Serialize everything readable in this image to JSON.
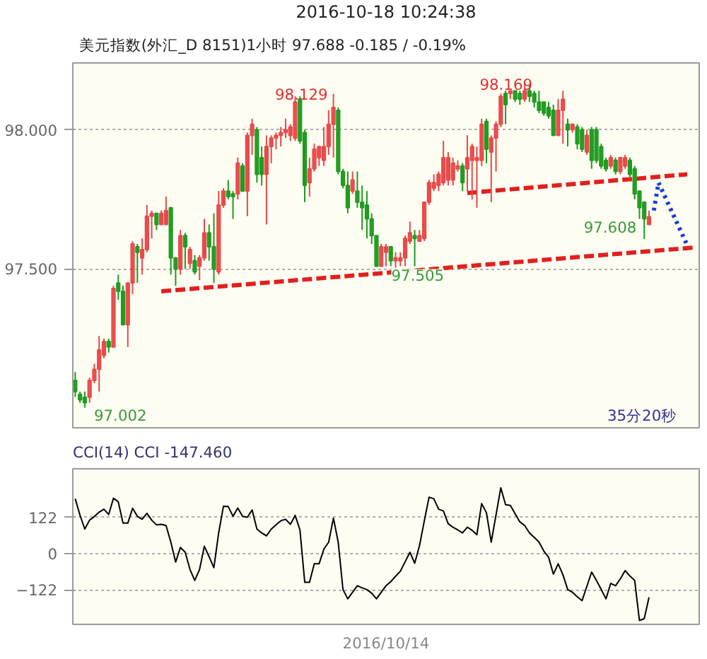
{
  "chart_data": [
    {
      "type": "candlestick",
      "title": "2016-10-18 10:24:38",
      "subtitle": "美元指数(外汇_D 8151)1小时   97.688   -0.185 / -0.19%",
      "annotations": [
        "35分20秒",
        "98.169",
        "97.608",
        "97.002",
        {
          "text": "98.129",
          "y": 98.129
        },
        {
          "text": "97.505",
          "y": 97.505
        }
      ],
      "categories": [
        null,
        null,
        null,
        null,
        null,
        null,
        null,
        null,
        null,
        null,
        null,
        null,
        null,
        null,
        null,
        null,
        null,
        null,
        null,
        null,
        null,
        null,
        null,
        null,
        null,
        null,
        null,
        null,
        null,
        null,
        null,
        null,
        null,
        null,
        null,
        null,
        null,
        null,
        null,
        null,
        null,
        null,
        null,
        null,
        null,
        null,
        null,
        null,
        null,
        null,
        null,
        null,
        null,
        null,
        null,
        null,
        null,
        null,
        null,
        null,
        null,
        null,
        null,
        null,
        null,
        null,
        null,
        null,
        null,
        null,
        null,
        null,
        null,
        null,
        null,
        null,
        null,
        null,
        null,
        null,
        null,
        null,
        null,
        null,
        null,
        null,
        null,
        null,
        null,
        null,
        null,
        null,
        null,
        null,
        null,
        null,
        null,
        null,
        null,
        null,
        null,
        null,
        null,
        null,
        null,
        null,
        null,
        null,
        null,
        null,
        null,
        null,
        null,
        null,
        null,
        null,
        null,
        null,
        null,
        null,
        null,
        null,
        null,
        null,
        null,
        null,
        null,
        null,
        null,
        null,
        null
      ],
      "ohlc": [
        [
          97.1,
          97.13,
          97.04,
          97.06
        ],
        [
          97.05,
          97.06,
          97.02,
          97.03
        ],
        [
          97.04,
          97.06,
          97.002,
          97.02
        ],
        [
          97.04,
          97.11,
          97.02,
          97.1
        ],
        [
          97.1,
          97.16,
          97.09,
          97.14
        ],
        [
          97.14,
          97.26,
          97.06,
          97.21
        ],
        [
          97.19,
          97.25,
          97.18,
          97.24
        ],
        [
          97.24,
          97.25,
          97.2,
          97.22
        ],
        [
          97.22,
          97.44,
          97.22,
          97.43
        ],
        [
          97.45,
          97.48,
          97.39,
          97.42
        ],
        [
          97.42,
          97.44,
          97.3,
          97.3
        ],
        [
          97.3,
          97.45,
          97.22,
          97.45
        ],
        [
          97.45,
          97.6,
          97.41,
          97.59
        ],
        [
          97.58,
          97.59,
          97.45,
          97.56
        ],
        [
          97.54,
          97.61,
          97.48,
          97.57
        ],
        [
          97.57,
          97.73,
          97.56,
          97.69
        ],
        [
          97.69,
          97.71,
          97.61,
          97.7
        ],
        [
          97.7,
          97.7,
          97.64,
          97.66
        ],
        [
          97.66,
          97.71,
          97.66,
          97.7
        ],
        [
          97.66,
          97.76,
          97.66,
          97.71
        ],
        [
          97.72,
          97.72,
          97.48,
          97.54
        ],
        [
          97.54,
          97.54,
          97.44,
          97.5
        ],
        [
          97.5,
          97.64,
          97.48,
          97.62
        ],
        [
          97.62,
          97.63,
          97.5,
          97.58
        ],
        [
          97.52,
          97.58,
          97.5,
          97.57
        ],
        [
          97.53,
          97.55,
          97.48,
          97.49
        ],
        [
          97.51,
          97.55,
          97.46,
          97.54
        ],
        [
          97.54,
          97.68,
          97.53,
          97.63
        ],
        [
          97.63,
          97.66,
          97.53,
          97.58
        ],
        [
          97.58,
          97.7,
          97.45,
          97.5
        ],
        [
          97.49,
          97.78,
          97.48,
          97.73
        ],
        [
          97.73,
          97.79,
          97.72,
          97.78
        ],
        [
          97.78,
          97.82,
          97.75,
          97.76
        ],
        [
          97.77,
          97.78,
          97.68,
          97.76
        ],
        [
          97.77,
          97.9,
          97.75,
          97.88
        ],
        [
          97.87,
          97.88,
          97.78,
          97.78
        ],
        [
          97.78,
          97.99,
          97.69,
          97.98
        ],
        [
          97.98,
          98.04,
          97.91,
          98.02
        ],
        [
          98.0,
          98.01,
          97.81,
          97.84
        ],
        [
          97.9,
          97.94,
          97.8,
          97.84
        ],
        [
          97.84,
          97.98,
          97.66,
          97.94
        ],
        [
          97.94,
          97.98,
          97.88,
          97.97
        ],
        [
          97.97,
          97.99,
          97.93,
          97.98
        ],
        [
          97.98,
          98.01,
          97.94,
          97.99
        ],
        [
          97.99,
          98.04,
          97.97,
          98.0
        ],
        [
          97.98,
          98.02,
          97.96,
          98.01
        ],
        [
          97.97,
          98.12,
          97.96,
          98.1
        ],
        [
          98.11,
          98.12,
          97.95,
          97.96
        ],
        [
          97.99,
          98.0,
          97.74,
          97.8
        ],
        [
          97.81,
          97.9,
          97.76,
          97.86
        ],
        [
          97.86,
          97.95,
          97.85,
          97.93
        ],
        [
          97.9,
          97.94,
          97.87,
          97.94
        ],
        [
          97.89,
          98.01,
          97.87,
          97.94
        ],
        [
          97.94,
          98.07,
          97.91,
          98.02
        ],
        [
          98.02,
          98.129,
          97.9,
          98.08
        ],
        [
          98.07,
          98.08,
          97.84,
          97.85
        ],
        [
          97.85,
          97.86,
          97.79,
          97.8
        ],
        [
          97.8,
          97.85,
          97.7,
          97.72
        ],
        [
          97.78,
          97.85,
          97.77,
          97.82
        ],
        [
          97.78,
          97.85,
          97.72,
          97.74
        ],
        [
          97.74,
          97.8,
          97.64,
          97.72
        ],
        [
          97.73,
          97.78,
          97.61,
          97.68
        ],
        [
          97.68,
          97.7,
          97.59,
          97.62
        ],
        [
          97.62,
          97.62,
          97.51,
          97.51
        ],
        [
          97.51,
          97.59,
          97.51,
          97.58
        ],
        [
          97.56,
          97.59,
          97.51,
          97.58
        ],
        [
          97.58,
          97.58,
          97.51,
          97.53
        ],
        [
          97.53,
          97.56,
          97.505,
          97.54
        ],
        [
          97.53,
          97.56,
          97.51,
          97.54
        ],
        [
          97.54,
          97.62,
          97.51,
          97.61
        ],
        [
          97.6,
          97.67,
          97.59,
          97.63
        ],
        [
          97.62,
          97.64,
          97.51,
          97.61
        ],
        [
          97.6,
          97.64,
          97.6,
          97.62
        ],
        [
          97.61,
          97.74,
          97.6,
          97.74
        ],
        [
          97.74,
          97.82,
          97.73,
          97.81
        ],
        [
          97.79,
          97.84,
          97.78,
          97.81
        ],
        [
          97.8,
          97.85,
          97.78,
          97.84
        ],
        [
          97.81,
          97.96,
          97.8,
          97.9
        ],
        [
          97.82,
          97.92,
          97.8,
          97.9
        ],
        [
          97.82,
          97.9,
          97.8,
          97.88
        ],
        [
          97.86,
          97.89,
          97.85,
          97.87
        ],
        [
          97.87,
          97.88,
          97.78,
          97.81
        ],
        [
          97.86,
          97.98,
          97.78,
          97.9
        ],
        [
          97.89,
          97.95,
          97.75,
          97.94
        ],
        [
          97.89,
          97.94,
          97.72,
          97.9
        ],
        [
          97.89,
          98.04,
          97.87,
          98.02
        ],
        [
          98.03,
          98.04,
          97.88,
          97.93
        ],
        [
          97.92,
          97.98,
          97.74,
          97.97
        ],
        [
          97.97,
          98.03,
          97.85,
          98.02
        ],
        [
          98.02,
          98.13,
          98.01,
          98.12
        ],
        [
          98.13,
          98.14,
          98.02,
          98.09
        ],
        [
          98.13,
          98.14,
          98.11,
          98.14
        ],
        [
          98.14,
          98.14,
          98.1,
          98.11
        ],
        [
          98.13,
          98.14,
          98.09,
          98.11
        ],
        [
          98.11,
          98.169,
          98.1,
          98.14
        ],
        [
          98.14,
          98.16,
          98.1,
          98.12
        ],
        [
          98.13,
          98.14,
          98.08,
          98.1
        ],
        [
          98.1,
          98.14,
          98.06,
          98.07
        ],
        [
          98.1,
          98.1,
          98.05,
          98.06
        ],
        [
          98.08,
          98.1,
          98.04,
          98.05
        ],
        [
          98.07,
          98.09,
          97.98,
          97.98
        ],
        [
          97.98,
          98.11,
          97.98,
          98.07
        ],
        [
          98.07,
          98.14,
          97.95,
          98.11
        ],
        [
          98.02,
          98.04,
          97.94,
          98.0
        ],
        [
          98.0,
          98.02,
          97.99,
          98.02
        ],
        [
          98.01,
          98.02,
          97.93,
          97.95
        ],
        [
          98.0,
          98.01,
          97.92,
          97.93
        ],
        [
          97.92,
          98.0,
          97.91,
          97.98
        ],
        [
          98.0,
          98.01,
          97.86,
          97.89
        ],
        [
          98.0,
          98.01,
          97.88,
          97.89
        ],
        [
          97.94,
          97.95,
          97.86,
          97.87
        ],
        [
          97.89,
          97.9,
          97.85,
          97.86
        ],
        [
          97.87,
          97.91,
          97.86,
          97.9
        ],
        [
          97.89,
          97.9,
          97.84,
          97.85
        ],
        [
          97.85,
          97.9,
          97.84,
          97.9
        ],
        [
          97.87,
          97.91,
          97.86,
          97.9
        ],
        [
          97.89,
          97.9,
          97.83,
          97.84
        ],
        [
          97.86,
          97.87,
          97.75,
          97.77
        ],
        [
          97.78,
          97.78,
          97.68,
          97.72
        ],
        [
          97.74,
          97.74,
          97.608,
          97.68
        ],
        [
          97.66,
          97.71,
          97.66,
          97.688
        ],
        null,
        null,
        null,
        null,
        null,
        null,
        null,
        null,
        null,
        null
      ],
      "colors": [
        "#1e9a1e",
        "#1e9a1e",
        "#1e9a1e",
        "#e84848",
        "#e84848",
        "#e84848",
        "#e84848",
        "#1e9a1e",
        "#e84848",
        "#1e9a1e",
        "#1e9a1e",
        "#e84848",
        "#e84848",
        "#1e9a1e",
        "#e84848",
        "#e84848",
        "#e84848",
        "#1e9a1e",
        "#e84848",
        "#e84848",
        "#1e9a1e",
        "#1e9a1e",
        "#e84848",
        "#1e9a1e",
        "#e84848",
        "#1e9a1e",
        "#e84848",
        "#e84848",
        "#1e9a1e",
        "#1e9a1e",
        "#e84848",
        "#e84848",
        "#1e9a1e",
        "#1e9a1e",
        "#e84848",
        "#1e9a1e",
        "#e84848",
        "#e84848",
        "#1e9a1e",
        "#1e9a1e",
        "#e84848",
        "#e84848",
        "#e84848",
        "#e84848",
        "#e84848",
        "#e84848",
        "#e84848",
        "#1e9a1e",
        "#1e9a1e",
        "#e84848",
        "#e84848",
        "#e84848",
        "#e84848",
        "#e84848",
        "#e84848",
        "#1e9a1e",
        "#1e9a1e",
        "#1e9a1e",
        "#e84848",
        "#1e9a1e",
        "#1e9a1e",
        "#1e9a1e",
        "#1e9a1e",
        "#1e9a1e",
        "#e84848",
        "#e84848",
        "#1e9a1e",
        "#e84848",
        "#e84848",
        "#e84848",
        "#e84848",
        "#1e9a1e",
        "#e84848",
        "#e84848",
        "#e84848",
        "#e84848",
        "#e84848",
        "#e84848",
        "#e84848",
        "#e84848",
        "#e84848",
        "#1e9a1e",
        "#e84848",
        "#e84848",
        "#e84848",
        "#e84848",
        "#1e9a1e",
        "#e84848",
        "#e84848",
        "#e84848",
        "#1e9a1e",
        "#e84848",
        "#1e9a1e",
        "#1e9a1e",
        "#e84848",
        "#1e9a1e",
        "#1e9a1e",
        "#1e9a1e",
        "#1e9a1e",
        "#1e9a1e",
        "#1e9a1e",
        "#e84848",
        "#e84848",
        "#1e9a1e",
        "#e84848",
        "#1e9a1e",
        "#1e9a1e",
        "#e84848",
        "#1e9a1e",
        "#1e9a1e",
        "#1e9a1e",
        "#1e9a1e",
        "#e84848",
        "#1e9a1e",
        "#e84848",
        "#e84848",
        "#1e9a1e",
        "#1e9a1e",
        "#1e9a1e",
        "#1e9a1e",
        "#e84848",
        null,
        null,
        null,
        null,
        null,
        null,
        null,
        null,
        null,
        null
      ],
      "series": [
        {
          "type": "line",
          "values": [
            null,
            null,
            null,
            null,
            null,
            null,
            null,
            null,
            null,
            null,
            null,
            null,
            null,
            null,
            null,
            null,
            null,
            null,
            97.42,
            null,
            null,
            null,
            null,
            null,
            null,
            null,
            null,
            null,
            null,
            null,
            null,
            null,
            null,
            null,
            null,
            null,
            null,
            null,
            null,
            null,
            null,
            null,
            null,
            null,
            null,
            null,
            null,
            null,
            null,
            null,
            null,
            null,
            null,
            null,
            null,
            null,
            null,
            null,
            null,
            null,
            null,
            null,
            null,
            null,
            null,
            null,
            null,
            null,
            null,
            null,
            null,
            null,
            null,
            null,
            null,
            null,
            null,
            null,
            null,
            null,
            null,
            null,
            null,
            null,
            null,
            null,
            null,
            null,
            null,
            null,
            null,
            null,
            null,
            null,
            null,
            null,
            null,
            null,
            null,
            null,
            null,
            null,
            null,
            null,
            null,
            null,
            null,
            null,
            null,
            null,
            null,
            null,
            null,
            null,
            null,
            null,
            null,
            null,
            null,
            null,
            null,
            null,
            null,
            null,
            null,
            null,
            null,
            null,
            null,
            null,
            97.578
          ],
          "color": "#e02020",
          "line_style": "dashed"
        },
        {
          "type": "line",
          "values": [
            null,
            null,
            null,
            null,
            null,
            null,
            null,
            null,
            null,
            null,
            null,
            null,
            null,
            null,
            null,
            null,
            null,
            null,
            null,
            null,
            null,
            null,
            null,
            null,
            null,
            null,
            null,
            null,
            null,
            null,
            null,
            null,
            null,
            null,
            null,
            null,
            null,
            null,
            null,
            null,
            null,
            null,
            null,
            null,
            null,
            null,
            null,
            null,
            null,
            null,
            null,
            null,
            null,
            null,
            null,
            null,
            null,
            null,
            null,
            null,
            null,
            null,
            null,
            null,
            null,
            null,
            null,
            null,
            null,
            null,
            null,
            null,
            null,
            null,
            null,
            null,
            null,
            null,
            null,
            null,
            null,
            null,
            97.773,
            null,
            null,
            null,
            null,
            null,
            null,
            null,
            null,
            null,
            null,
            null,
            null,
            null,
            null,
            null,
            null,
            null,
            null,
            null,
            null,
            null,
            null,
            null,
            null,
            null,
            null,
            null,
            null,
            null,
            null,
            null,
            null,
            null,
            null,
            null,
            null,
            null,
            null,
            null,
            null,
            null,
            null,
            null,
            null,
            null,
            97.84,
            null,
            null
          ],
          "color": "#e02020",
          "line_style": "dashed"
        },
        {
          "type": "line",
          "values": [
            null,
            null,
            null,
            null,
            null,
            null,
            null,
            null,
            null,
            null,
            null,
            null,
            null,
            null,
            null,
            null,
            null,
            null,
            null,
            null,
            null,
            null,
            null,
            null,
            null,
            null,
            null,
            null,
            null,
            null,
            null,
            null,
            null,
            null,
            null,
            null,
            null,
            null,
            null,
            null,
            null,
            null,
            null,
            null,
            null,
            null,
            null,
            null,
            null,
            null,
            null,
            null,
            null,
            null,
            null,
            null,
            null,
            null,
            null,
            null,
            null,
            null,
            null,
            null,
            null,
            null,
            null,
            null,
            null,
            null,
            null,
            null,
            null,
            null,
            null,
            null,
            null,
            null,
            null,
            null,
            null,
            null,
            null,
            null,
            null,
            null,
            null,
            null,
            null,
            null,
            null,
            null,
            null,
            null,
            null,
            null,
            null,
            null,
            null,
            null,
            null,
            null,
            null,
            null,
            null,
            null,
            null,
            null,
            null,
            null,
            null,
            null,
            null,
            null,
            null,
            null,
            null,
            null,
            null,
            null,
            null,
            97.71,
            97.81,
            null,
            null,
            null,
            null,
            null,
            97.585,
            null,
            null
          ],
          "color": "#1a3fd0",
          "line_style": "dotted"
        }
      ],
      "ylim": [
        96.93,
        98.24
      ],
      "yticks": [
        {
          "value": 97.5,
          "label": "97.500"
        },
        {
          "value": 98,
          "label": "98.000"
        }
      ],
      "grid": "y",
      "tick_labels": "y"
    },
    {
      "type": "line",
      "title": "CCI(14)  CCI  -147.460",
      "annotations": [
        "2016/10/14"
      ],
      "categories": [
        null,
        null,
        null,
        null,
        null,
        null,
        null,
        null,
        null,
        null,
        null,
        null,
        null,
        null,
        null,
        null,
        null,
        null,
        null,
        null,
        null,
        null,
        null,
        null,
        null,
        null,
        null,
        null,
        null,
        null,
        null,
        null,
        null,
        null,
        null,
        null,
        null,
        null,
        null,
        null,
        null,
        null,
        null,
        null,
        null,
        null,
        null,
        null,
        null,
        null,
        null,
        null,
        null,
        null,
        null,
        null,
        null,
        null,
        null,
        null,
        null,
        null,
        null,
        null,
        null,
        null,
        null,
        null,
        null,
        null,
        null,
        null,
        null,
        null,
        null,
        null,
        null,
        null,
        null,
        null,
        null,
        null,
        null,
        null,
        null,
        null,
        null,
        null,
        null,
        null,
        null,
        null,
        null,
        null,
        null,
        null,
        null,
        null,
        null,
        null,
        null,
        null,
        null,
        null,
        null,
        null,
        null,
        null,
        null,
        null,
        null,
        null,
        null,
        null,
        null,
        null,
        null,
        null,
        null,
        null,
        null,
        null,
        null,
        null,
        null,
        null,
        null,
        null,
        null,
        null,
        null
      ],
      "series": [
        {
          "values": [
            185,
            130,
            83,
            113,
            125,
            140,
            150,
            132,
            187,
            175,
            103,
            103,
            153,
            126,
            116,
            136,
            113,
            97,
            99,
            95,
            39,
            -28,
            21,
            5,
            -53,
            -90,
            -53,
            25,
            -10,
            -47,
            70,
            160,
            159,
            126,
            154,
            126,
            123,
            147,
            83,
            70,
            60,
            83,
            97,
            111,
            116,
            99,
            129,
            80,
            -96,
            -96,
            -34,
            -34,
            15,
            39,
            120,
            39,
            -121,
            -152,
            -130,
            -108,
            -115,
            -121,
            -133,
            -152,
            -130,
            -108,
            -94,
            -76,
            -59,
            -27,
            5,
            -32,
            27,
            110,
            190,
            185,
            150,
            144,
            101,
            89,
            80,
            70,
            89,
            79,
            64,
            169,
            138,
            39,
            130,
            222,
            165,
            163,
            135,
            107,
            95,
            70,
            55,
            39,
            9,
            -12,
            -69,
            -34,
            -71,
            -121,
            -130,
            -145,
            -158,
            -110,
            -62,
            -90,
            -120,
            -152,
            -100,
            -108,
            -85,
            -57,
            -75,
            -90,
            -225,
            -219,
            -147,
            null,
            null,
            null,
            null,
            null,
            null,
            null,
            null,
            null,
            null
          ],
          "color": "#000000"
        }
      ],
      "ylim": [
        -238,
        286
      ],
      "yticks": [
        122,
        0,
        -122
      ],
      "grid": "y",
      "tick_labels": "y"
    }
  ]
}
